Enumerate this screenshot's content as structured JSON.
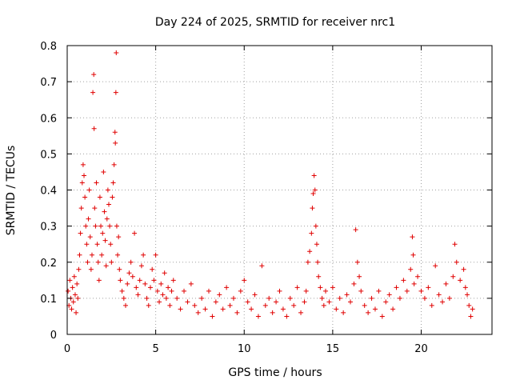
{
  "chart_data": {
    "type": "scatter",
    "title": "Day 224 of 2025, SRMTID for receiver nrc1",
    "xlabel": "GPS time / hours",
    "ylabel": "SRMTID / TECUs",
    "xlim": [
      0,
      24
    ],
    "ylim": [
      0,
      0.8
    ],
    "xticks": [
      0,
      5,
      10,
      15,
      20
    ],
    "yticks": [
      0,
      0.1,
      0.2,
      0.3,
      0.4,
      0.5,
      0.6,
      0.7,
      0.8
    ],
    "xtick_labels": [
      "0",
      "5",
      "10",
      "15",
      "20"
    ],
    "ytick_labels": [
      "0",
      "0.1",
      "0.2",
      "0.3",
      "0.4",
      "0.5",
      "0.6",
      "0.7",
      "0.8"
    ],
    "grid": true,
    "marker": "+",
    "color": "#e00000",
    "series": [
      {
        "name": "SRMTID",
        "points": [
          [
            0.05,
            0.12
          ],
          [
            0.1,
            0.08
          ],
          [
            0.15,
            0.15
          ],
          [
            0.2,
            0.1
          ],
          [
            0.25,
            0.07
          ],
          [
            0.3,
            0.13
          ],
          [
            0.35,
            0.09
          ],
          [
            0.4,
            0.16
          ],
          [
            0.45,
            0.11
          ],
          [
            0.5,
            0.06
          ],
          [
            0.55,
            0.14
          ],
          [
            0.6,
            0.1
          ],
          [
            0.65,
            0.18
          ],
          [
            0.7,
            0.22
          ],
          [
            0.75,
            0.28
          ],
          [
            0.8,
            0.35
          ],
          [
            0.85,
            0.42
          ],
          [
            0.9,
            0.47
          ],
          [
            0.95,
            0.44
          ],
          [
            1.0,
            0.38
          ],
          [
            1.05,
            0.3
          ],
          [
            1.1,
            0.25
          ],
          [
            1.15,
            0.2
          ],
          [
            1.2,
            0.32
          ],
          [
            1.25,
            0.4
          ],
          [
            1.3,
            0.27
          ],
          [
            1.35,
            0.18
          ],
          [
            1.4,
            0.22
          ],
          [
            1.45,
            0.67
          ],
          [
            1.5,
            0.72
          ],
          [
            1.52,
            0.57
          ],
          [
            1.55,
            0.35
          ],
          [
            1.6,
            0.3
          ],
          [
            1.65,
            0.42
          ],
          [
            1.7,
            0.25
          ],
          [
            1.75,
            0.2
          ],
          [
            1.8,
            0.15
          ],
          [
            1.85,
            0.38
          ],
          [
            1.9,
            0.3
          ],
          [
            1.95,
            0.22
          ],
          [
            2.0,
            0.28
          ],
          [
            2.05,
            0.45
          ],
          [
            2.1,
            0.34
          ],
          [
            2.15,
            0.26
          ],
          [
            2.2,
            0.19
          ],
          [
            2.25,
            0.32
          ],
          [
            2.3,
            0.4
          ],
          [
            2.35,
            0.36
          ],
          [
            2.4,
            0.3
          ],
          [
            2.45,
            0.25
          ],
          [
            2.5,
            0.2
          ],
          [
            2.55,
            0.38
          ],
          [
            2.6,
            0.42
          ],
          [
            2.65,
            0.47
          ],
          [
            2.7,
            0.56
          ],
          [
            2.72,
            0.53
          ],
          [
            2.75,
            0.67
          ],
          [
            2.77,
            0.78
          ],
          [
            2.8,
            0.3
          ],
          [
            2.85,
            0.22
          ],
          [
            2.9,
            0.27
          ],
          [
            2.95,
            0.18
          ],
          [
            3.0,
            0.15
          ],
          [
            3.1,
            0.12
          ],
          [
            3.2,
            0.1
          ],
          [
            3.3,
            0.08
          ],
          [
            3.4,
            0.14
          ],
          [
            3.5,
            0.17
          ],
          [
            3.6,
            0.2
          ],
          [
            3.7,
            0.16
          ],
          [
            3.8,
            0.28
          ],
          [
            3.9,
            0.13
          ],
          [
            4.0,
            0.11
          ],
          [
            4.1,
            0.15
          ],
          [
            4.2,
            0.19
          ],
          [
            4.3,
            0.22
          ],
          [
            4.4,
            0.14
          ],
          [
            4.5,
            0.1
          ],
          [
            4.6,
            0.08
          ],
          [
            4.7,
            0.13
          ],
          [
            4.8,
            0.18
          ],
          [
            4.9,
            0.15
          ],
          [
            5.0,
            0.22
          ],
          [
            5.1,
            0.12
          ],
          [
            5.2,
            0.09
          ],
          [
            5.3,
            0.14
          ],
          [
            5.4,
            0.11
          ],
          [
            5.5,
            0.17
          ],
          [
            5.6,
            0.1
          ],
          [
            5.7,
            0.13
          ],
          [
            5.8,
            0.08
          ],
          [
            5.9,
            0.12
          ],
          [
            6.0,
            0.15
          ],
          [
            6.2,
            0.1
          ],
          [
            6.4,
            0.07
          ],
          [
            6.6,
            0.12
          ],
          [
            6.8,
            0.09
          ],
          [
            7.0,
            0.14
          ],
          [
            7.2,
            0.08
          ],
          [
            7.4,
            0.06
          ],
          [
            7.6,
            0.1
          ],
          [
            7.8,
            0.07
          ],
          [
            8.0,
            0.12
          ],
          [
            8.2,
            0.05
          ],
          [
            8.4,
            0.09
          ],
          [
            8.6,
            0.11
          ],
          [
            8.8,
            0.07
          ],
          [
            9.0,
            0.13
          ],
          [
            9.2,
            0.08
          ],
          [
            9.4,
            0.1
          ],
          [
            9.6,
            0.06
          ],
          [
            9.8,
            0.12
          ],
          [
            10.0,
            0.15
          ],
          [
            10.2,
            0.09
          ],
          [
            10.4,
            0.07
          ],
          [
            10.6,
            0.11
          ],
          [
            10.8,
            0.05
          ],
          [
            11.0,
            0.19
          ],
          [
            11.2,
            0.08
          ],
          [
            11.4,
            0.1
          ],
          [
            11.6,
            0.06
          ],
          [
            11.8,
            0.09
          ],
          [
            12.0,
            0.12
          ],
          [
            12.2,
            0.07
          ],
          [
            12.4,
            0.05
          ],
          [
            12.6,
            0.1
          ],
          [
            12.8,
            0.08
          ],
          [
            13.0,
            0.13
          ],
          [
            13.2,
            0.06
          ],
          [
            13.4,
            0.09
          ],
          [
            13.5,
            0.12
          ],
          [
            13.6,
            0.2
          ],
          [
            13.7,
            0.23
          ],
          [
            13.8,
            0.28
          ],
          [
            13.85,
            0.35
          ],
          [
            13.9,
            0.39
          ],
          [
            13.95,
            0.44
          ],
          [
            14.0,
            0.4
          ],
          [
            14.05,
            0.3
          ],
          [
            14.1,
            0.25
          ],
          [
            14.15,
            0.2
          ],
          [
            14.2,
            0.16
          ],
          [
            14.3,
            0.13
          ],
          [
            14.4,
            0.1
          ],
          [
            14.5,
            0.08
          ],
          [
            14.6,
            0.12
          ],
          [
            14.8,
            0.09
          ],
          [
            15.0,
            0.13
          ],
          [
            15.2,
            0.07
          ],
          [
            15.4,
            0.1
          ],
          [
            15.6,
            0.06
          ],
          [
            15.8,
            0.11
          ],
          [
            16.0,
            0.09
          ],
          [
            16.2,
            0.14
          ],
          [
            16.3,
            0.29
          ],
          [
            16.4,
            0.2
          ],
          [
            16.5,
            0.16
          ],
          [
            16.6,
            0.12
          ],
          [
            16.8,
            0.08
          ],
          [
            17.0,
            0.06
          ],
          [
            17.2,
            0.1
          ],
          [
            17.4,
            0.07
          ],
          [
            17.6,
            0.12
          ],
          [
            17.8,
            0.05
          ],
          [
            18.0,
            0.09
          ],
          [
            18.2,
            0.11
          ],
          [
            18.4,
            0.07
          ],
          [
            18.6,
            0.13
          ],
          [
            18.8,
            0.1
          ],
          [
            19.0,
            0.15
          ],
          [
            19.2,
            0.12
          ],
          [
            19.4,
            0.18
          ],
          [
            19.5,
            0.27
          ],
          [
            19.55,
            0.22
          ],
          [
            19.6,
            0.14
          ],
          [
            19.8,
            0.16
          ],
          [
            20.0,
            0.12
          ],
          [
            20.2,
            0.1
          ],
          [
            20.4,
            0.13
          ],
          [
            20.6,
            0.08
          ],
          [
            20.8,
            0.19
          ],
          [
            21.0,
            0.11
          ],
          [
            21.2,
            0.09
          ],
          [
            21.4,
            0.14
          ],
          [
            21.6,
            0.1
          ],
          [
            21.8,
            0.16
          ],
          [
            21.9,
            0.25
          ],
          [
            22.0,
            0.2
          ],
          [
            22.2,
            0.15
          ],
          [
            22.4,
            0.18
          ],
          [
            22.5,
            0.13
          ],
          [
            22.6,
            0.11
          ],
          [
            22.7,
            0.08
          ],
          [
            22.8,
            0.05
          ],
          [
            22.9,
            0.07
          ]
        ]
      }
    ]
  }
}
